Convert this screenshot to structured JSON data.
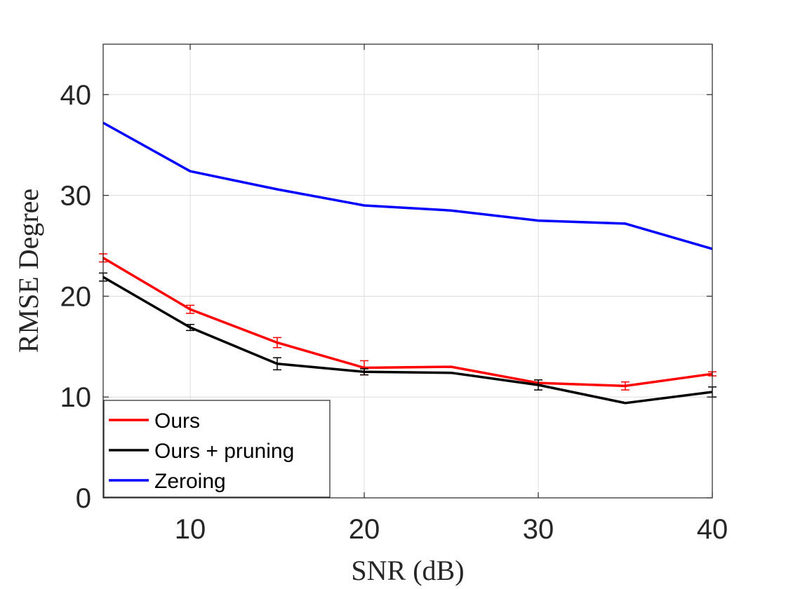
{
  "chart_data": {
    "type": "line",
    "xlabel": "SNR (dB)",
    "ylabel": "RMSE Degree",
    "xlim": [
      5,
      40
    ],
    "ylim": [
      0,
      45
    ],
    "xticks": [
      10,
      20,
      30,
      40
    ],
    "yticks": [
      0,
      10,
      20,
      30,
      40
    ],
    "grid": true,
    "legend_position": "bottom-left",
    "x": [
      5,
      10,
      15,
      20,
      25,
      30,
      35,
      40
    ],
    "series": [
      {
        "name": "Ours",
        "color": "#ff0000",
        "values": [
          23.8,
          18.7,
          15.4,
          12.9,
          13.0,
          11.4,
          11.1,
          12.3
        ],
        "errors": [
          0.4,
          0.4,
          0.5,
          0.7,
          null,
          null,
          0.4,
          0.2
        ]
      },
      {
        "name": "Ours + pruning",
        "color": "#000000",
        "values": [
          21.9,
          16.9,
          13.3,
          12.5,
          12.4,
          11.2,
          9.4,
          10.5
        ],
        "errors": [
          0.4,
          0.3,
          0.6,
          0.3,
          null,
          0.5,
          null,
          0.5
        ]
      },
      {
        "name": "Zeroing",
        "color": "#0000ff",
        "values": [
          37.2,
          32.4,
          30.6,
          29.0,
          28.5,
          27.5,
          27.2,
          24.7
        ],
        "errors": [
          null,
          null,
          null,
          null,
          null,
          null,
          null,
          null
        ]
      }
    ]
  }
}
